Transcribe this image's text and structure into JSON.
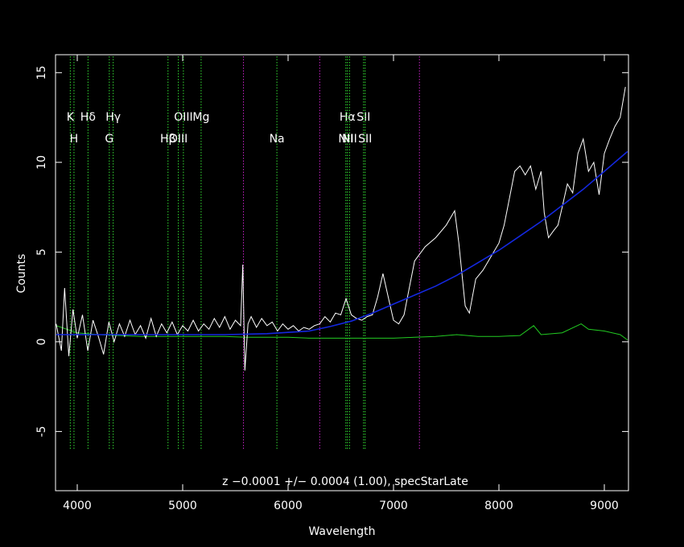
{
  "chart_data": {
    "type": "line",
    "annotation": "z −0.0001 +/− 0.0004 (1.00), specStarLate",
    "x_label": "Wavelength",
    "y_label": "Counts",
    "xlim": [
      3794,
      9229
    ],
    "ylim": [
      -8.3,
      16.0
    ],
    "xticks": [
      4000,
      5000,
      6000,
      7000,
      8000,
      9000
    ],
    "yticks": [
      -5,
      0,
      5,
      10,
      15
    ],
    "lines_upper": [
      {
        "label": "K",
        "x": 3934
      },
      {
        "label": "Hδ",
        "x": 4102
      },
      {
        "label": "Hγ",
        "x": 4341
      },
      {
        "label": "OIII",
        "x": 5007
      },
      {
        "label": "Mg",
        "x": 5175
      },
      {
        "label": "Hα",
        "x": 6563
      },
      {
        "label": "SII",
        "x": 6716
      }
    ],
    "lines_lower": [
      {
        "label": "H",
        "x": 3969
      },
      {
        "label": "G",
        "x": 4304
      },
      {
        "label": "Hβ",
        "x": 4861
      },
      {
        "label": "OIII",
        "x": 4959
      },
      {
        "label": "Na",
        "x": 5894
      },
      {
        "label": "NII",
        "x": 6548
      },
      {
        "label": "NII",
        "x": 6583
      },
      {
        "label": "SII",
        "x": 6731
      }
    ],
    "line_color": "#33dd33",
    "sky_lines": [
      5577,
      6300,
      7246
    ],
    "sky_color": "#cc22cc",
    "series": [
      {
        "color": "#ffffff",
        "x": [
          3800,
          3850,
          3880,
          3920,
          3960,
          4000,
          4050,
          4100,
          4150,
          4200,
          4250,
          4300,
          4350,
          4400,
          4450,
          4500,
          4550,
          4600,
          4650,
          4700,
          4750,
          4800,
          4850,
          4900,
          4950,
          5000,
          5050,
          5100,
          5150,
          5200,
          5250,
          5300,
          5350,
          5400,
          5450,
          5500,
          5550,
          5570,
          5590,
          5620,
          5650,
          5700,
          5750,
          5800,
          5850,
          5900,
          5950,
          6000,
          6050,
          6100,
          6150,
          6200,
          6250,
          6300,
          6350,
          6400,
          6450,
          6500,
          6550,
          6600,
          6650,
          6700,
          6750,
          6800,
          6850,
          6900,
          6950,
          7000,
          7050,
          7100,
          7150,
          7200,
          7300,
          7400,
          7500,
          7580,
          7620,
          7680,
          7720,
          7780,
          7850,
          7900,
          8000,
          8050,
          8100,
          8150,
          8200,
          8250,
          8300,
          8350,
          8400,
          8430,
          8470,
          8520,
          8560,
          8600,
          8650,
          8700,
          8750,
          8800,
          8850,
          8900,
          8950,
          9000,
          9050,
          9100,
          9150,
          9200
        ],
        "values": [
          1.0,
          -0.5,
          3.0,
          -0.8,
          1.8,
          0.2,
          1.5,
          -0.5,
          1.2,
          0.3,
          -0.7,
          1.1,
          0.0,
          1.0,
          0.3,
          1.2,
          0.4,
          0.9,
          0.2,
          1.3,
          0.3,
          1.0,
          0.5,
          1.1,
          0.4,
          0.9,
          0.6,
          1.2,
          0.6,
          1.0,
          0.7,
          1.3,
          0.8,
          1.4,
          0.7,
          1.2,
          0.9,
          4.3,
          -1.6,
          1.0,
          1.4,
          0.8,
          1.3,
          0.9,
          1.1,
          0.6,
          1.0,
          0.7,
          0.9,
          0.6,
          0.8,
          0.7,
          0.9,
          1.0,
          1.4,
          1.1,
          1.6,
          1.5,
          2.4,
          1.5,
          1.3,
          1.2,
          1.4,
          1.5,
          2.5,
          3.8,
          2.5,
          1.2,
          1.0,
          1.5,
          3.0,
          4.5,
          5.3,
          5.8,
          6.5,
          7.3,
          5.5,
          2.0,
          1.6,
          3.5,
          4.0,
          4.5,
          5.5,
          6.5,
          8.0,
          9.5,
          9.8,
          9.3,
          9.8,
          8.5,
          9.5,
          7.2,
          5.8,
          6.2,
          6.5,
          7.5,
          8.8,
          8.3,
          10.5,
          11.3,
          9.5,
          10.0,
          8.2,
          10.5,
          11.3,
          12.0,
          12.5,
          14.2
        ]
      },
      {
        "color": "#1428e0",
        "x": [
          3800,
          4200,
          4600,
          5000,
          5400,
          5800,
          6200,
          6400,
          6600,
          6800,
          7000,
          7200,
          7400,
          7600,
          7800,
          8000,
          8200,
          8400,
          8600,
          8800,
          9000,
          9220
        ],
        "values": [
          0.4,
          0.4,
          0.4,
          0.4,
          0.4,
          0.45,
          0.6,
          0.85,
          1.15,
          1.6,
          2.1,
          2.6,
          3.1,
          3.7,
          4.4,
          5.1,
          5.9,
          6.7,
          7.6,
          8.5,
          9.5,
          10.6
        ]
      },
      {
        "color": "#22cc22",
        "x": [
          3800,
          4000,
          4200,
          4400,
          4600,
          4800,
          5000,
          5200,
          5400,
          5600,
          5800,
          6000,
          6200,
          6400,
          6600,
          6800,
          7000,
          7200,
          7400,
          7600,
          7800,
          8000,
          8200,
          8330,
          8400,
          8600,
          8780,
          8850,
          9000,
          9150,
          9220
        ],
        "values": [
          0.9,
          0.5,
          0.4,
          0.35,
          0.3,
          0.3,
          0.3,
          0.3,
          0.3,
          0.25,
          0.25,
          0.25,
          0.2,
          0.2,
          0.2,
          0.2,
          0.2,
          0.25,
          0.3,
          0.4,
          0.3,
          0.3,
          0.35,
          0.9,
          0.4,
          0.5,
          1.0,
          0.7,
          0.6,
          0.4,
          0.1
        ]
      }
    ]
  }
}
